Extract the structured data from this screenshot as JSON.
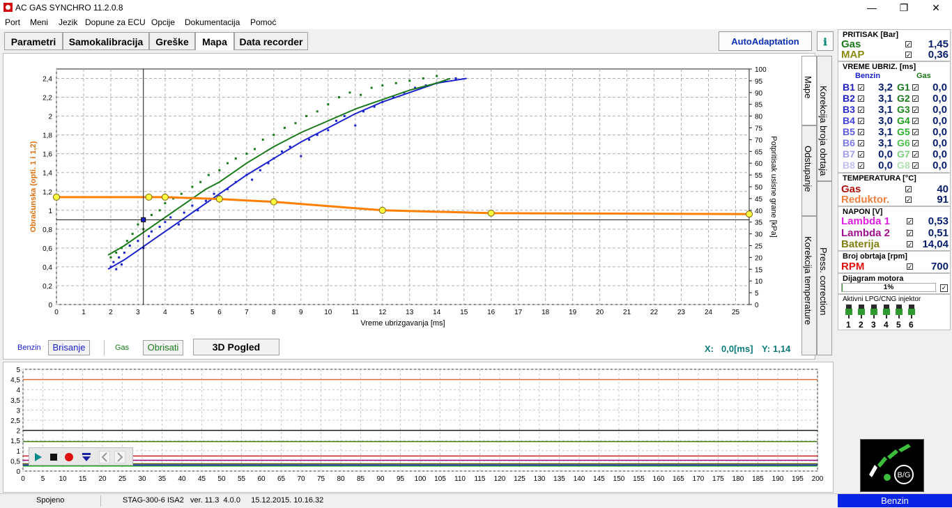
{
  "window": {
    "title": "AC GAS SYNCHRO  11.2.0.8",
    "minimize": "—",
    "maximize": "❐",
    "close": "✕"
  },
  "menu": [
    "Port",
    "Meni",
    "Jezik",
    "Dopune za ECU",
    "Opcije",
    "Dokumentacija",
    "Pomoć"
  ],
  "tabs": [
    "Parametri",
    "Samokalibracija",
    "Greške",
    "Mapa",
    "Data recorder"
  ],
  "active_tab": "Mapa",
  "autoadapt_label": "AutoAdaptation",
  "help_label": "ℹ",
  "vertical_tabs": [
    "Mape",
    "Korekcija broja obrtaja",
    "Odstupanje",
    "Press. correction",
    "Korekcija temperature"
  ],
  "map_controls": {
    "benzin_label": "Benzin",
    "brisanje": "Brisanje",
    "gas_label": "Gas",
    "obrisati": "Obrisati",
    "pogled_3d": "3D Pogled",
    "x_label": "X:",
    "x_value": "0,0[ms]",
    "y_label": "Y:",
    "y_value": "1,14"
  },
  "chart_data": [
    {
      "type": "scatter",
      "title": "",
      "xlabel": "Vreme ubrizgavanja [ms]",
      "ylabel": "Obračunska (opti. 1 i 1,2)",
      "y2label": "Potpritisak usisne grane [kPa]",
      "xlim": [
        0,
        25.5
      ],
      "ylim": [
        0,
        2.5
      ],
      "y2lim": [
        0,
        100
      ],
      "x_ticks": [
        0,
        1,
        2,
        3,
        4,
        5,
        6,
        7,
        8,
        9,
        10,
        11,
        12,
        13,
        14,
        15,
        16,
        17,
        18,
        19,
        20,
        21,
        22,
        23,
        24,
        25
      ],
      "y_ticks": [
        "0",
        "0,2",
        "0,4",
        "0,6",
        "0,8",
        "1",
        "1,2",
        "1,4",
        "1,6",
        "1,8",
        "2",
        "2,2",
        "2,4"
      ],
      "y2_ticks": [
        0,
        5,
        10,
        15,
        20,
        25,
        30,
        35,
        40,
        45,
        50,
        55,
        60,
        65,
        70,
        75,
        80,
        85,
        90,
        95,
        100
      ],
      "grid": true,
      "colors": {
        "benzin": "#1a22cc",
        "gas": "#1a7a1a",
        "multiplier": "#ff8000",
        "point": "#ffff40"
      },
      "series": [
        {
          "name": "Benzin",
          "kind": "curve",
          "x": [
            1.9,
            2.5,
            3,
            3.5,
            4,
            4.5,
            5,
            5.5,
            6,
            7,
            8,
            9,
            10,
            11,
            12,
            13,
            14,
            15.1
          ],
          "y2": [
            15,
            19,
            23,
            27,
            31,
            35,
            39,
            43,
            47,
            55,
            62,
            69,
            75,
            81,
            86,
            90,
            94,
            96
          ]
        },
        {
          "name": "Gas",
          "kind": "curve",
          "x": [
            1.9,
            2.5,
            3,
            3.5,
            4,
            4.5,
            5,
            5.5,
            6,
            7,
            8,
            9,
            10,
            11,
            12,
            13,
            14,
            14.5
          ],
          "y2": [
            21,
            25,
            29,
            33,
            37,
            41,
            45,
            49,
            52,
            60,
            67,
            73,
            78,
            83,
            87,
            91,
            94,
            96
          ]
        },
        {
          "name": "Benzin",
          "kind": "points",
          "x": [
            2,
            2.1,
            2.2,
            2.3,
            2.4,
            2.5,
            2.7,
            3,
            3.2,
            3.4,
            3.5,
            3.8,
            4,
            4.2,
            4.5,
            4.7,
            5,
            5.2,
            5.5,
            5.8,
            6,
            6.3,
            6.6,
            7,
            7.2,
            7.5,
            7.8,
            8,
            8.3,
            8.6,
            9,
            9.3,
            9.6,
            10,
            10.3,
            10.6,
            11,
            11.3,
            11.7,
            12,
            12.4,
            12.8,
            13.2,
            13.6,
            14,
            14.3,
            14.7
          ],
          "y2": [
            16,
            18,
            15,
            20,
            17,
            22,
            25,
            27,
            24,
            29,
            31,
            33,
            35,
            37,
            34,
            39,
            42,
            40,
            44,
            47,
            46,
            49,
            52,
            55,
            53,
            57,
            60,
            62,
            65,
            67,
            63,
            70,
            72,
            74,
            78,
            80,
            76,
            82,
            84,
            86,
            88,
            90,
            92,
            93,
            94,
            95,
            96
          ]
        },
        {
          "name": "Gas",
          "kind": "points",
          "x": [
            2,
            2.2,
            2.4,
            2.6,
            2.8,
            3,
            3.2,
            3.5,
            3.8,
            4,
            4.3,
            4.6,
            5,
            5.3,
            5.6,
            6,
            6.3,
            6.6,
            7,
            7.3,
            7.6,
            8,
            8.4,
            8.8,
            9.2,
            9.6,
            10,
            10.4,
            10.8,
            11.2,
            11.6,
            12,
            12.5,
            13,
            13.5,
            14
          ],
          "y2": [
            20,
            22,
            24,
            27,
            30,
            34,
            32,
            38,
            40,
            43,
            45,
            47,
            50,
            52,
            55,
            57,
            60,
            62,
            64,
            66,
            70,
            72,
            75,
            77,
            80,
            82,
            85,
            88,
            90,
            89,
            92,
            93,
            94,
            95,
            96,
            97
          ]
        },
        {
          "name": "Multiplier",
          "kind": "line",
          "x": [
            0,
            3.4,
            4,
            6,
            8,
            12,
            16,
            25.5
          ],
          "y": [
            1.14,
            1.14,
            1.14,
            1.12,
            1.09,
            1.0,
            0.97,
            0.96
          ]
        }
      ],
      "crosshair": {
        "x": 3.2,
        "y": 0.9
      }
    },
    {
      "type": "line",
      "title": "",
      "xlim": [
        0,
        200
      ],
      "ylim": [
        0,
        5
      ],
      "x_ticks": [
        0,
        5,
        10,
        15,
        20,
        25,
        30,
        35,
        40,
        45,
        50,
        55,
        60,
        65,
        70,
        75,
        80,
        85,
        90,
        95,
        100,
        105,
        110,
        115,
        120,
        125,
        130,
        135,
        140,
        145,
        150,
        155,
        160,
        165,
        170,
        175,
        180,
        185,
        190,
        195,
        200
      ],
      "y_ticks": [
        "0",
        "0,5",
        "1",
        "1,5",
        "2",
        "2,5",
        "3",
        "3,5",
        "4",
        "4,5",
        "5"
      ],
      "series": [
        {
          "color": "#e07030",
          "y": 4.5
        },
        {
          "color": "#1a1a1a",
          "y": 2.0
        },
        {
          "color": "#3a7a10",
          "y": 1.45
        },
        {
          "color": "#c02020",
          "y": 0.74
        },
        {
          "color": "#a00080",
          "y": 0.53
        },
        {
          "color": "#606000",
          "y": 0.36
        },
        {
          "color": "#1a22cc",
          "y": 0.3
        },
        {
          "color": "#20a020",
          "y": 0.25
        }
      ]
    }
  ],
  "recorder_controls": [
    "play-icon",
    "stop-icon",
    "record-icon",
    "marker-icon",
    "prev-icon",
    "next-icon"
  ],
  "right_panel": {
    "pritisak": {
      "title": "PRITISAK [Bar]",
      "rows": [
        {
          "label": "Gas",
          "value": "1,45",
          "color": "#1a7a1a"
        },
        {
          "label": "MAP",
          "value": "0,36",
          "color": "#8a8a10"
        }
      ]
    },
    "vreme": {
      "title": "VREME UBRIZ. [ms]",
      "col_benzin": "Benzin",
      "col_gas": "Gas",
      "rows": [
        {
          "b": "B1",
          "bv": "3,2",
          "g": "G1",
          "gv": "0,0",
          "bc": "#2020c0",
          "gc": "#1a7a1a"
        },
        {
          "b": "B2",
          "bv": "3,1",
          "g": "G2",
          "gv": "0,0",
          "bc": "#2020c0",
          "gc": "#1a7a1a"
        },
        {
          "b": "B3",
          "bv": "3,1",
          "g": "G3",
          "gv": "0,0",
          "bc": "#2a2ad0",
          "gc": "#1a8a1a"
        },
        {
          "b": "B4",
          "bv": "3,0",
          "g": "G4",
          "gv": "0,0",
          "bc": "#4040d8",
          "gc": "#20a020"
        },
        {
          "b": "B5",
          "bv": "3,1",
          "g": "G5",
          "gv": "0,0",
          "bc": "#5a5ae0",
          "gc": "#30b030"
        },
        {
          "b": "B6",
          "bv": "3,1",
          "g": "G6",
          "gv": "0,0",
          "bc": "#7a7ae8",
          "gc": "#50c050"
        },
        {
          "b": "B7",
          "bv": "0,0",
          "g": "G7",
          "gv": "0,0",
          "bc": "#a0a0ee",
          "gc": "#80d080"
        },
        {
          "b": "B8",
          "bv": "0,0",
          "g": "G8",
          "gv": "0,0",
          "bc": "#c0c0f4",
          "gc": "#b0e0b0"
        }
      ]
    },
    "temperatura": {
      "title": "TEMPERATURA  [°C]",
      "rows": [
        {
          "label": "Gas",
          "value": "40",
          "color": "#b01010"
        },
        {
          "label": "Reduktor.",
          "value": "91",
          "color": "#f08040"
        }
      ]
    },
    "napon": {
      "title": "NAPON [V]",
      "rows": [
        {
          "label": "Lambda 1",
          "value": "0,53",
          "color": "#e020e0"
        },
        {
          "label": "Lambda 2",
          "value": "0,51",
          "color": "#a01090"
        },
        {
          "label": "Baterija",
          "value": "14,04",
          "color": "#808010"
        }
      ]
    },
    "rpm": {
      "title": "Broj obrtaja [rpm]",
      "label": "RPM",
      "value": "700",
      "color": "#e01010"
    },
    "dijagram": {
      "title": "Dijagram motora",
      "value": "1%"
    },
    "injektori": {
      "title": "Aktivni LPG/CNG injektor",
      "numbers": [
        "1",
        "2",
        "3",
        "4",
        "5",
        "6"
      ]
    },
    "logo_label": "B/G"
  },
  "status": {
    "connection": "Spojeno",
    "ecu_info": "STAG-300-6 ISA2   ver. 11.3  4.0.0     15.12.2015. 10.16.32",
    "mode": "Benzin"
  }
}
